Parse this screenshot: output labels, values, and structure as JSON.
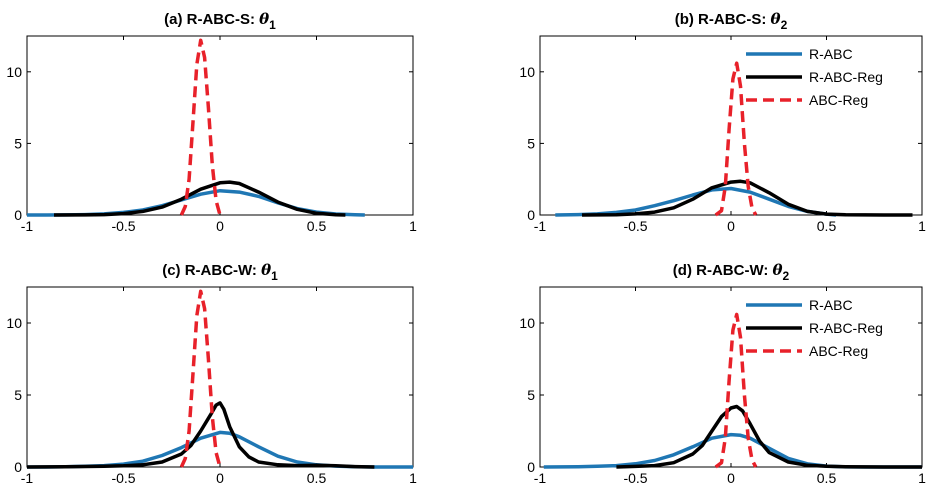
{
  "chart_data": [
    {
      "type": "line",
      "title_prefix": "(a) R-ABC-S:",
      "title_symbol": "θ",
      "title_subscript": "1",
      "xlim": [
        -1,
        1
      ],
      "ylim": [
        0,
        12.5
      ],
      "xticks": [
        -1,
        -0.5,
        0,
        0.5,
        1
      ],
      "xtick_labels": [
        "-1",
        "-0.5",
        "0",
        "0.5",
        "1"
      ],
      "yticks": [
        0,
        5,
        10
      ],
      "ytick_labels": [
        "0",
        "5",
        "10"
      ],
      "show_legend": false,
      "series": [
        {
          "name": "R-ABC",
          "color": "#1f77b4",
          "style": "solid",
          "x": [
            -1.0,
            -0.9,
            -0.8,
            -0.7,
            -0.6,
            -0.5,
            -0.4,
            -0.3,
            -0.2,
            -0.1,
            0.0,
            0.1,
            0.2,
            0.3,
            0.4,
            0.5,
            0.6,
            0.7,
            0.75
          ],
          "y": [
            0.0,
            0.0,
            0.01,
            0.03,
            0.08,
            0.18,
            0.35,
            0.65,
            1.05,
            1.45,
            1.7,
            1.6,
            1.3,
            0.85,
            0.45,
            0.2,
            0.07,
            0.02,
            0.0
          ]
        },
        {
          "name": "R-ABC-Reg",
          "color": "#000000",
          "style": "solid",
          "x": [
            -0.86,
            -0.7,
            -0.6,
            -0.5,
            -0.4,
            -0.3,
            -0.2,
            -0.1,
            0.0,
            0.05,
            0.1,
            0.2,
            0.3,
            0.4,
            0.5,
            0.6,
            0.65
          ],
          "y": [
            0.0,
            0.01,
            0.03,
            0.1,
            0.25,
            0.55,
            1.1,
            1.8,
            2.25,
            2.3,
            2.2,
            1.6,
            0.9,
            0.4,
            0.12,
            0.02,
            0.0
          ]
        },
        {
          "name": "ABC-Reg",
          "color": "#e8212a",
          "style": "dashed",
          "x": [
            -0.2,
            -0.18,
            -0.16,
            -0.14,
            -0.12,
            -0.1,
            -0.08,
            -0.06,
            -0.04,
            -0.02,
            0.0
          ],
          "y": [
            0.0,
            0.6,
            2.5,
            6.5,
            10.5,
            12.2,
            11.0,
            7.5,
            3.5,
            1.0,
            0.0
          ]
        }
      ]
    },
    {
      "type": "line",
      "title_prefix": "(b) R-ABC-S:",
      "title_symbol": "θ",
      "title_subscript": "2",
      "xlim": [
        -1,
        1
      ],
      "ylim": [
        0,
        12.5
      ],
      "xticks": [
        -1,
        -0.5,
        0,
        0.5,
        1
      ],
      "xtick_labels": [
        "-1",
        "-0.5",
        "0",
        "0.5",
        "1"
      ],
      "yticks": [
        0,
        5,
        10
      ],
      "ytick_labels": [
        "0",
        "5",
        "10"
      ],
      "show_legend": true,
      "legend_position": "top-right",
      "series": [
        {
          "name": "R-ABC",
          "color": "#1f77b4",
          "style": "solid",
          "x": [
            -0.92,
            -0.8,
            -0.7,
            -0.6,
            -0.5,
            -0.4,
            -0.3,
            -0.2,
            -0.1,
            0.0,
            0.1,
            0.2,
            0.3,
            0.4,
            0.5,
            0.55
          ],
          "y": [
            0.0,
            0.03,
            0.08,
            0.18,
            0.35,
            0.65,
            1.0,
            1.4,
            1.75,
            1.85,
            1.6,
            1.1,
            0.6,
            0.25,
            0.06,
            0.0
          ]
        },
        {
          "name": "R-ABC-Reg",
          "color": "#000000",
          "style": "solid",
          "x": [
            -0.78,
            -0.6,
            -0.5,
            -0.4,
            -0.3,
            -0.2,
            -0.1,
            0.0,
            0.05,
            0.1,
            0.2,
            0.3,
            0.4,
            0.5,
            0.6,
            0.8,
            0.95
          ],
          "y": [
            0.0,
            0.02,
            0.08,
            0.2,
            0.5,
            1.1,
            1.9,
            2.3,
            2.35,
            2.25,
            1.55,
            0.75,
            0.25,
            0.06,
            0.02,
            0.0,
            0.0
          ]
        },
        {
          "name": "ABC-Reg",
          "color": "#e8212a",
          "style": "dashed",
          "x": [
            -0.08,
            -0.05,
            -0.03,
            -0.01,
            0.01,
            0.03,
            0.05,
            0.07,
            0.09,
            0.11,
            0.13
          ],
          "y": [
            0.0,
            0.3,
            2.0,
            6.0,
            9.5,
            10.6,
            9.0,
            5.0,
            2.0,
            0.5,
            0.0
          ]
        }
      ]
    },
    {
      "type": "line",
      "title_prefix": "(c) R-ABC-W:",
      "title_symbol": "θ",
      "title_subscript": "1",
      "xlim": [
        -1,
        1
      ],
      "ylim": [
        0,
        12.5
      ],
      "xticks": [
        -1,
        -0.5,
        0,
        0.5,
        1
      ],
      "xtick_labels": [
        "-1",
        "-0.5",
        "0",
        "0.5",
        "1"
      ],
      "yticks": [
        0,
        5,
        10
      ],
      "ytick_labels": [
        "0",
        "5",
        "10"
      ],
      "show_legend": false,
      "series": [
        {
          "name": "R-ABC",
          "color": "#1f77b4",
          "style": "solid",
          "x": [
            -1.0,
            -0.9,
            -0.8,
            -0.7,
            -0.6,
            -0.5,
            -0.4,
            -0.3,
            -0.2,
            -0.1,
            0.0,
            0.05,
            0.1,
            0.2,
            0.3,
            0.4,
            0.5,
            0.6,
            0.7,
            0.8,
            0.9,
            1.0
          ],
          "y": [
            0.0,
            0.0,
            0.02,
            0.05,
            0.1,
            0.2,
            0.4,
            0.8,
            1.35,
            2.0,
            2.4,
            2.35,
            2.1,
            1.4,
            0.75,
            0.35,
            0.15,
            0.06,
            0.02,
            0.0,
            0.0,
            0.0
          ]
        },
        {
          "name": "R-ABC-Reg",
          "color": "#000000",
          "style": "solid",
          "x": [
            -1.0,
            -0.8,
            -0.6,
            -0.5,
            -0.4,
            -0.3,
            -0.2,
            -0.15,
            -0.1,
            -0.05,
            -0.02,
            0.0,
            0.02,
            0.05,
            0.1,
            0.15,
            0.2,
            0.3,
            0.4,
            0.5,
            0.6,
            0.7,
            0.8
          ],
          "y": [
            0.0,
            0.02,
            0.05,
            0.08,
            0.15,
            0.35,
            0.9,
            1.5,
            2.5,
            3.6,
            4.3,
            4.45,
            4.0,
            2.8,
            1.4,
            0.7,
            0.35,
            0.15,
            0.1,
            0.12,
            0.08,
            0.03,
            0.0
          ]
        },
        {
          "name": "ABC-Reg",
          "color": "#e8212a",
          "style": "dashed",
          "x": [
            -0.2,
            -0.18,
            -0.16,
            -0.14,
            -0.12,
            -0.1,
            -0.08,
            -0.06,
            -0.04,
            -0.02,
            0.0
          ],
          "y": [
            0.0,
            0.6,
            2.5,
            6.5,
            10.5,
            12.2,
            11.0,
            7.5,
            3.5,
            1.0,
            0.0
          ]
        }
      ]
    },
    {
      "type": "line",
      "title_prefix": "(d) R-ABC-W:",
      "title_symbol": "θ",
      "title_subscript": "2",
      "xlim": [
        -1,
        1
      ],
      "ylim": [
        0,
        12.5
      ],
      "xticks": [
        -1,
        -0.5,
        0,
        0.5,
        1
      ],
      "xtick_labels": [
        "-1",
        "-0.5",
        "0",
        "0.5",
        "1"
      ],
      "yticks": [
        0,
        5,
        10
      ],
      "ytick_labels": [
        "0",
        "5",
        "10"
      ],
      "show_legend": true,
      "legend_position": "top-right",
      "series": [
        {
          "name": "R-ABC",
          "color": "#1f77b4",
          "style": "solid",
          "x": [
            -0.98,
            -0.8,
            -0.7,
            -0.6,
            -0.5,
            -0.4,
            -0.3,
            -0.2,
            -0.1,
            0.0,
            0.05,
            0.1,
            0.2,
            0.3,
            0.4,
            0.5,
            0.6,
            0.7,
            0.8,
            1.0
          ],
          "y": [
            0.0,
            0.02,
            0.05,
            0.1,
            0.22,
            0.45,
            0.85,
            1.4,
            2.0,
            2.25,
            2.2,
            2.0,
            1.3,
            0.6,
            0.22,
            0.06,
            0.01,
            0.0,
            0.0,
            0.0
          ]
        },
        {
          "name": "R-ABC-Reg",
          "color": "#000000",
          "style": "solid",
          "x": [
            -0.6,
            -0.5,
            -0.4,
            -0.3,
            -0.2,
            -0.15,
            -0.1,
            -0.05,
            0.0,
            0.03,
            0.06,
            0.1,
            0.15,
            0.2,
            0.3,
            0.4,
            0.5,
            0.6,
            0.8,
            1.0
          ],
          "y": [
            0.0,
            0.04,
            0.1,
            0.3,
            0.9,
            1.5,
            2.5,
            3.5,
            4.1,
            4.2,
            3.9,
            3.0,
            1.8,
            1.0,
            0.35,
            0.12,
            0.05,
            0.02,
            0.0,
            0.0
          ]
        },
        {
          "name": "ABC-Reg",
          "color": "#e8212a",
          "style": "dashed",
          "x": [
            -0.08,
            -0.05,
            -0.03,
            -0.01,
            0.01,
            0.03,
            0.05,
            0.07,
            0.09,
            0.11,
            0.13
          ],
          "y": [
            0.0,
            0.3,
            2.0,
            6.0,
            9.5,
            10.6,
            9.0,
            5.0,
            2.0,
            0.5,
            0.0
          ]
        }
      ]
    }
  ]
}
